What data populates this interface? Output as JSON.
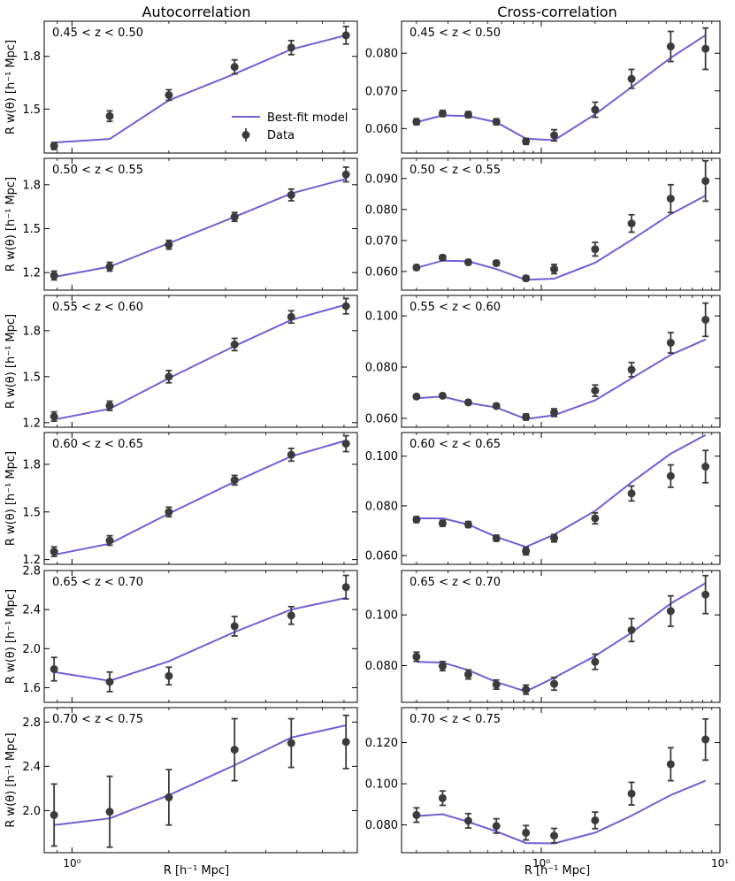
{
  "column_titles": [
    "Autocorrelation",
    "Cross-correlation"
  ],
  "ylabel": "R w(θ) [h⁻¹ Mpc]",
  "xlabel": "R [h⁻¹ Mpc]",
  "x_tick_labels_left": [
    "10⁰"
  ],
  "x_tick_labels_right": [
    "10⁰",
    "10¹"
  ],
  "legend": {
    "model_label": "Best-fit model",
    "data_label": "Data",
    "location": "lower-right of top-left panel"
  },
  "colors": {
    "model": "#6f5fd6",
    "data": "#3b3b3b"
  },
  "chart_data": [
    {
      "type": "scatter",
      "column": "Autocorrelation",
      "row": 0,
      "panel_label": "0.45 < z < 0.50",
      "xscale": "log",
      "xlim": [
        0.82,
        7.7
      ],
      "ylim": [
        1.25,
        2.0
      ],
      "yticks": [
        1.5,
        1.8
      ],
      "ytick_labels": [
        "1.5",
        "1.8"
      ],
      "x": [
        0.88,
        1.31,
        2.0,
        3.2,
        4.8,
        7.1
      ],
      "y": [
        1.29,
        1.46,
        1.58,
        1.74,
        1.85,
        1.92
      ],
      "yerr": [
        0.02,
        0.03,
        0.03,
        0.04,
        0.04,
        0.05
      ],
      "model": [
        1.31,
        1.33,
        1.55,
        1.7,
        1.84,
        1.92
      ]
    },
    {
      "type": "scatter",
      "column": "Cross-correlation",
      "row": 0,
      "panel_label": "0.45 < z < 0.50",
      "xscale": "log",
      "xlim": [
        0.165,
        10
      ],
      "ylim": [
        0.0535,
        0.0885
      ],
      "yticks": [
        0.06,
        0.07,
        0.08
      ],
      "ytick_labels": [
        "0.060",
        "0.070",
        "0.080"
      ],
      "x": [
        0.2,
        0.28,
        0.39,
        0.56,
        0.82,
        1.18,
        2.0,
        3.2,
        5.3,
        8.3
      ],
      "y": [
        0.0618,
        0.064,
        0.0637,
        0.0618,
        0.0566,
        0.0582,
        0.065,
        0.0732,
        0.0818,
        0.0812
      ],
      "yerr": [
        0.0008,
        0.0008,
        0.0008,
        0.0008,
        0.0008,
        0.0015,
        0.002,
        0.0025,
        0.004,
        0.0055
      ],
      "model": [
        0.0617,
        0.0635,
        0.0633,
        0.0617,
        0.0573,
        0.0569,
        0.0638,
        0.071,
        0.0788,
        0.0848
      ]
    },
    {
      "type": "scatter",
      "column": "Autocorrelation",
      "row": 1,
      "panel_label": "0.50 < z < 0.55",
      "xscale": "log",
      "xlim": [
        0.82,
        7.7
      ],
      "ylim": [
        1.08,
        1.98
      ],
      "yticks": [
        1.2,
        1.5,
        1.8
      ],
      "ytick_labels": [
        "1.2",
        "1.5",
        "1.8"
      ],
      "x": [
        0.88,
        1.31,
        2.0,
        3.2,
        4.8,
        7.1
      ],
      "y": [
        1.18,
        1.24,
        1.39,
        1.58,
        1.73,
        1.87
      ],
      "yerr": [
        0.03,
        0.03,
        0.03,
        0.03,
        0.04,
        0.05
      ],
      "model": [
        1.17,
        1.24,
        1.4,
        1.58,
        1.74,
        1.84
      ]
    },
    {
      "type": "scatter",
      "column": "Cross-correlation",
      "row": 1,
      "panel_label": "0.50 < z < 0.55",
      "xscale": "log",
      "xlim": [
        0.165,
        10
      ],
      "ylim": [
        0.054,
        0.0965
      ],
      "yticks": [
        0.06,
        0.07,
        0.08,
        0.09
      ],
      "ytick_labels": [
        "0.060",
        "0.070",
        "0.080",
        "0.090"
      ],
      "x": [
        0.2,
        0.28,
        0.39,
        0.56,
        0.82,
        1.18,
        2.0,
        3.2,
        5.3,
        8.3
      ],
      "y": [
        0.0613,
        0.0645,
        0.063,
        0.0627,
        0.0578,
        0.0608,
        0.0672,
        0.0755,
        0.0835,
        0.0892
      ],
      "yerr": [
        0.0008,
        0.0008,
        0.0008,
        0.0008,
        0.0008,
        0.0015,
        0.0022,
        0.0028,
        0.0045,
        0.0065
      ],
      "model": [
        0.0612,
        0.0635,
        0.0633,
        0.0608,
        0.0573,
        0.0577,
        0.0628,
        0.0702,
        0.0785,
        0.0845
      ]
    },
    {
      "type": "scatter",
      "column": "Autocorrelation",
      "row": 2,
      "panel_label": "0.55 < z < 0.60",
      "xscale": "log",
      "xlim": [
        0.82,
        7.7
      ],
      "ylim": [
        1.17,
        2.03
      ],
      "yticks": [
        1.2,
        1.5,
        1.8
      ],
      "ytick_labels": [
        "1.2",
        "1.5",
        "1.8"
      ],
      "x": [
        0.88,
        1.31,
        2.0,
        3.2,
        4.8,
        7.1
      ],
      "y": [
        1.24,
        1.31,
        1.5,
        1.71,
        1.89,
        1.96
      ],
      "yerr": [
        0.03,
        0.03,
        0.04,
        0.04,
        0.04,
        0.05
      ],
      "model": [
        1.22,
        1.29,
        1.49,
        1.7,
        1.87,
        1.97
      ]
    },
    {
      "type": "scatter",
      "column": "Cross-correlation",
      "row": 2,
      "panel_label": "0.55 < z < 0.60",
      "xscale": "log",
      "xlim": [
        0.165,
        10
      ],
      "ylim": [
        0.0565,
        0.108
      ],
      "yticks": [
        0.06,
        0.08,
        0.1
      ],
      "ytick_labels": [
        "0.060",
        "0.080",
        "0.100"
      ],
      "x": [
        0.2,
        0.28,
        0.39,
        0.56,
        0.82,
        1.18,
        2.0,
        3.2,
        5.3,
        8.3
      ],
      "y": [
        0.0685,
        0.0688,
        0.0662,
        0.0648,
        0.0605,
        0.0622,
        0.0708,
        0.079,
        0.0895,
        0.0985
      ],
      "yerr": [
        0.0008,
        0.0008,
        0.0008,
        0.0009,
        0.0012,
        0.0015,
        0.0022,
        0.0028,
        0.004,
        0.0065
      ],
      "model": [
        0.0678,
        0.0685,
        0.066,
        0.0642,
        0.0597,
        0.0612,
        0.067,
        0.0756,
        0.0848,
        0.0908
      ]
    },
    {
      "type": "scatter",
      "column": "Autocorrelation",
      "row": 3,
      "panel_label": "0.60 < z < 0.65",
      "xscale": "log",
      "xlim": [
        0.82,
        7.7
      ],
      "ylim": [
        1.17,
        2.0
      ],
      "yticks": [
        1.2,
        1.5,
        1.8
      ],
      "ytick_labels": [
        "1.2",
        "1.5",
        "1.8"
      ],
      "x": [
        0.88,
        1.31,
        2.0,
        3.2,
        4.8,
        7.1
      ],
      "y": [
        1.25,
        1.32,
        1.5,
        1.7,
        1.86,
        1.93
      ],
      "yerr": [
        0.03,
        0.03,
        0.03,
        0.03,
        0.04,
        0.05
      ],
      "model": [
        1.23,
        1.3,
        1.49,
        1.69,
        1.85,
        1.95
      ]
    },
    {
      "type": "scatter",
      "column": "Cross-correlation",
      "row": 3,
      "panel_label": "0.60 < z < 0.65",
      "xscale": "log",
      "xlim": [
        0.165,
        10
      ],
      "ylim": [
        0.0565,
        0.1095
      ],
      "yticks": [
        0.06,
        0.08,
        0.1
      ],
      "ytick_labels": [
        "0.060",
        "0.080",
        "0.100"
      ],
      "x": [
        0.2,
        0.28,
        0.39,
        0.56,
        0.82,
        1.18,
        2.0,
        3.2,
        5.3,
        8.3
      ],
      "y": [
        0.0745,
        0.073,
        0.0725,
        0.067,
        0.0618,
        0.067,
        0.075,
        0.085,
        0.092,
        0.0958
      ],
      "yerr": [
        0.0012,
        0.0012,
        0.0012,
        0.0012,
        0.0015,
        0.0015,
        0.0022,
        0.003,
        0.0045,
        0.0065
      ],
      "model": [
        0.075,
        0.075,
        0.0725,
        0.0675,
        0.0635,
        0.0685,
        0.078,
        0.0895,
        0.101,
        0.1085
      ]
    },
    {
      "type": "scatter",
      "column": "Autocorrelation",
      "row": 4,
      "panel_label": "0.65 < z < 0.70",
      "xscale": "log",
      "xlim": [
        0.82,
        7.7
      ],
      "ylim": [
        1.45,
        2.8
      ],
      "yticks": [
        1.6,
        2.0,
        2.4,
        2.8
      ],
      "ytick_labels": [
        "1.6",
        "2.0",
        "2.4",
        "2.8"
      ],
      "x": [
        0.88,
        1.31,
        2.0,
        3.2,
        4.8,
        7.1
      ],
      "y": [
        1.79,
        1.66,
        1.72,
        2.23,
        2.34,
        2.63
      ],
      "yerr": [
        0.12,
        0.1,
        0.09,
        0.1,
        0.09,
        0.12
      ],
      "model": [
        1.76,
        1.67,
        1.87,
        2.17,
        2.4,
        2.52
      ]
    },
    {
      "type": "scatter",
      "column": "Cross-correlation",
      "row": 4,
      "panel_label": "0.65 < z < 0.70",
      "xscale": "log",
      "xlim": [
        0.165,
        10
      ],
      "ylim": [
        0.0655,
        0.1175
      ],
      "yticks": [
        0.08,
        0.1
      ],
      "ytick_labels": [
        "0.080",
        "0.100"
      ],
      "x": [
        0.2,
        0.28,
        0.39,
        0.56,
        0.82,
        1.18,
        2.0,
        3.2,
        5.3,
        8.3
      ],
      "y": [
        0.0835,
        0.0798,
        0.0765,
        0.0725,
        0.0705,
        0.0728,
        0.0815,
        0.094,
        0.1015,
        0.108
      ],
      "yerr": [
        0.0018,
        0.0018,
        0.0018,
        0.0018,
        0.0018,
        0.0025,
        0.003,
        0.0045,
        0.006,
        0.0075
      ],
      "model": [
        0.0815,
        0.0812,
        0.0782,
        0.0735,
        0.0698,
        0.0752,
        0.0838,
        0.093,
        0.1045,
        0.1125
      ]
    },
    {
      "type": "scatter",
      "column": "Autocorrelation",
      "row": 5,
      "panel_label": "0.70 < z < 0.75",
      "xscale": "log",
      "xlim": [
        0.82,
        7.7
      ],
      "ylim": [
        1.62,
        2.93
      ],
      "yticks": [
        2.0,
        2.4,
        2.8
      ],
      "ytick_labels": [
        "2.0",
        "2.4",
        "2.8"
      ],
      "x": [
        0.88,
        1.31,
        2.0,
        3.2,
        4.8,
        7.1
      ],
      "y": [
        1.96,
        1.99,
        2.12,
        2.55,
        2.61,
        2.62
      ],
      "yerr": [
        0.28,
        0.32,
        0.25,
        0.28,
        0.22,
        0.24
      ],
      "model": [
        1.87,
        1.93,
        2.14,
        2.41,
        2.66,
        2.77
      ]
    },
    {
      "type": "scatter",
      "column": "Cross-correlation",
      "row": 5,
      "panel_label": "0.70 < z < 0.75",
      "xscale": "log",
      "xlim": [
        0.165,
        10
      ],
      "ylim": [
        0.0665,
        0.137
      ],
      "yticks": [
        0.08,
        0.1,
        0.12
      ],
      "ytick_labels": [
        "0.080",
        "0.100",
        "0.120"
      ],
      "x": [
        0.2,
        0.28,
        0.39,
        0.56,
        0.82,
        1.18,
        2.0,
        3.2,
        5.3,
        8.3
      ],
      "y": [
        0.0848,
        0.093,
        0.082,
        0.0795,
        0.0762,
        0.0748,
        0.0822,
        0.0952,
        0.1095,
        0.1215
      ],
      "yerr": [
        0.0035,
        0.0035,
        0.0035,
        0.0035,
        0.0035,
        0.0035,
        0.004,
        0.0055,
        0.008,
        0.01
      ],
      "model": [
        0.0843,
        0.0852,
        0.0815,
        0.0768,
        0.0712,
        0.071,
        0.0762,
        0.0845,
        0.0945,
        0.1015
      ]
    }
  ]
}
